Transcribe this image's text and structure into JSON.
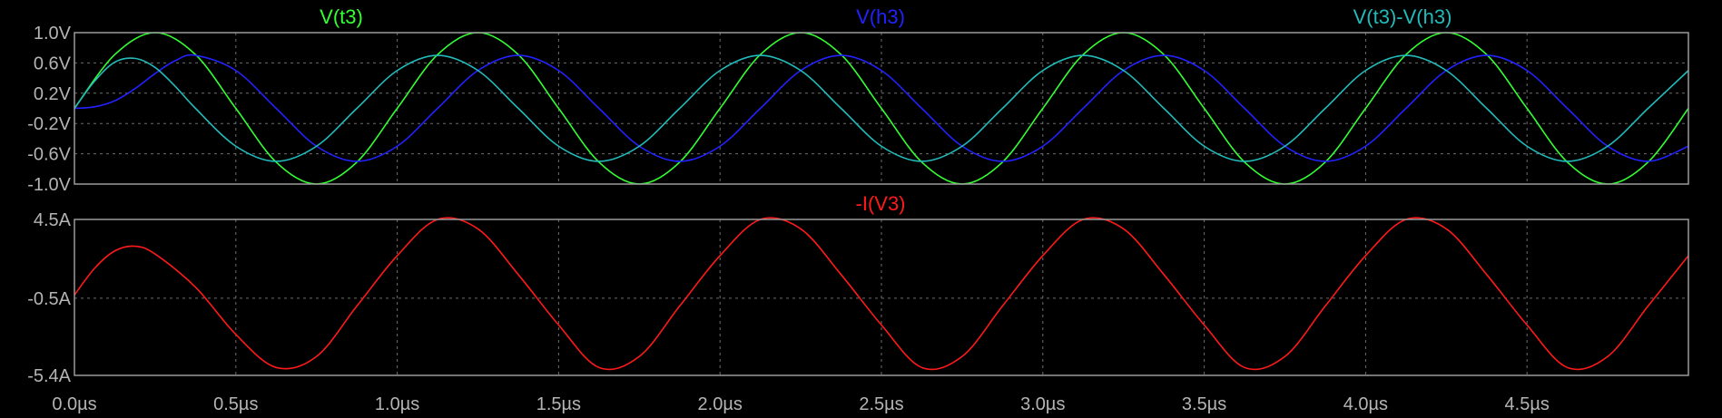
{
  "chart_data": [
    {
      "type": "line",
      "x_unit": "µs",
      "xlim": [
        0,
        5
      ],
      "ylim": [
        -1.0,
        1.0
      ],
      "x_ticks": [
        0,
        0.5,
        1,
        1.5,
        2,
        2.5,
        3,
        3.5,
        4,
        4.5
      ],
      "x_tick_labels": [
        "0.0µs",
        "0.5µs",
        "1.0µs",
        "1.5µs",
        "2.0µs",
        "2.5µs",
        "3.0µs",
        "3.5µs",
        "4.0µs",
        "4.5µs"
      ],
      "y_ticks": [
        1.0,
        0.6,
        0.2,
        -0.2,
        -0.6,
        -1.0
      ],
      "y_tick_labels": [
        "1.0V",
        "0.6V",
        "0.2V",
        "-0.2V",
        "-0.6V",
        "-1.0V"
      ],
      "grid": true,
      "series": [
        {
          "name": "V(t3)",
          "color": "#33ff33",
          "x": [
            0,
            0.125,
            0.25,
            0.375,
            0.5,
            0.625,
            0.75,
            0.875,
            1.0,
            1.125,
            1.25,
            1.375,
            1.5,
            1.625,
            1.75,
            1.875,
            2.0,
            2.125,
            2.25,
            2.375,
            2.5,
            2.625,
            2.75,
            2.875,
            3.0,
            3.125,
            3.25,
            3.375,
            3.5,
            3.625,
            3.75,
            3.875,
            4.0,
            4.125,
            4.25,
            4.375,
            4.5,
            4.625,
            4.75,
            4.875,
            5.0
          ],
          "values": [
            0,
            0.71,
            1.0,
            0.71,
            0,
            -0.71,
            -1.0,
            -0.71,
            0,
            0.71,
            1.0,
            0.71,
            0,
            -0.71,
            -1.0,
            -0.71,
            0,
            0.71,
            1.0,
            0.71,
            0,
            -0.71,
            -1.0,
            -0.71,
            0,
            0.71,
            1.0,
            0.71,
            0,
            -0.71,
            -1.0,
            -0.71,
            0,
            0.71,
            1.0,
            0.71,
            0,
            -0.71,
            -1.0,
            -0.71,
            0
          ]
        },
        {
          "name": "V(h3)",
          "color": "#2222ff",
          "x": [
            0,
            0.0625,
            0.125,
            0.1875,
            0.25,
            0.3125,
            0.375,
            0.5,
            0.625,
            0.75,
            0.875,
            1.0,
            1.125,
            1.25,
            1.375,
            1.5,
            1.625,
            1.75,
            1.875,
            2.0,
            2.125,
            2.25,
            2.375,
            2.5,
            2.625,
            2.75,
            2.875,
            3.0,
            3.125,
            3.25,
            3.375,
            3.5,
            3.625,
            3.75,
            3.875,
            4.0,
            4.125,
            4.25,
            4.375,
            4.5,
            4.625,
            4.75,
            4.875,
            5.0
          ],
          "values": [
            0,
            0.02,
            0.1,
            0.26,
            0.46,
            0.63,
            0.7,
            0.5,
            0,
            -0.5,
            -0.7,
            -0.5,
            0,
            0.5,
            0.7,
            0.5,
            0,
            -0.5,
            -0.7,
            -0.5,
            0,
            0.5,
            0.7,
            0.5,
            0,
            -0.5,
            -0.7,
            -0.5,
            0,
            0.5,
            0.7,
            0.5,
            0,
            -0.5,
            -0.7,
            -0.5,
            0,
            0.5,
            0.7,
            0.5,
            0,
            -0.5,
            -0.7,
            -0.5
          ]
        },
        {
          "name": "V(t3)-V(h3)",
          "color": "#22bbbb",
          "x": [
            0,
            0.0625,
            0.125,
            0.1875,
            0.25,
            0.3125,
            0.375,
            0.5,
            0.625,
            0.75,
            0.875,
            1.0,
            1.125,
            1.25,
            1.375,
            1.5,
            1.625,
            1.75,
            1.875,
            2.0,
            2.125,
            2.25,
            2.375,
            2.5,
            2.625,
            2.75,
            2.875,
            3.0,
            3.125,
            3.25,
            3.375,
            3.5,
            3.625,
            3.75,
            3.875,
            4.0,
            4.125,
            4.25,
            4.375,
            4.5,
            4.625,
            4.75,
            4.875,
            5.0
          ],
          "values": [
            0,
            0.36,
            0.61,
            0.66,
            0.54,
            0.29,
            0.0,
            -0.5,
            -0.7,
            -0.5,
            0,
            0.5,
            0.7,
            0.5,
            0,
            -0.5,
            -0.7,
            -0.5,
            0,
            0.5,
            0.7,
            0.5,
            0,
            -0.5,
            -0.7,
            -0.5,
            0,
            0.5,
            0.7,
            0.5,
            0,
            -0.5,
            -0.7,
            -0.5,
            0,
            0.5,
            0.7,
            0.5,
            0,
            -0.5,
            -0.7,
            -0.5,
            0,
            0.5
          ]
        }
      ]
    },
    {
      "type": "line",
      "x_unit": "µs",
      "xlim": [
        0,
        5
      ],
      "ylim": [
        -5.4,
        4.5
      ],
      "x_ticks": [
        0,
        0.5,
        1,
        1.5,
        2,
        2.5,
        3,
        3.5,
        4,
        4.5
      ],
      "y_ticks": [
        4.5,
        -0.5,
        -5.4
      ],
      "y_tick_labels": [
        "4.5A",
        "-0.5A",
        "-5.4A"
      ],
      "grid": true,
      "series": [
        {
          "name": "-I(V3)",
          "color": "#ff1a1a",
          "x": [
            0,
            0.0625,
            0.125,
            0.1875,
            0.25,
            0.375,
            0.5,
            0.625,
            0.75,
            0.875,
            1.0,
            1.125,
            1.25,
            1.375,
            1.5,
            1.625,
            1.75,
            1.875,
            2.0,
            2.125,
            2.25,
            2.375,
            2.5,
            2.625,
            2.75,
            2.875,
            3.0,
            3.125,
            3.25,
            3.375,
            3.5,
            3.625,
            3.75,
            3.875,
            4.0,
            4.125,
            4.25,
            4.375,
            4.5,
            4.625,
            4.75,
            4.875,
            5.0
          ],
          "values": [
            -0.3,
            1.4,
            2.5,
            2.8,
            2.3,
            0.2,
            -2.8,
            -4.9,
            -4.2,
            -1.0,
            2.2,
            4.5,
            3.9,
            1.0,
            -2.2,
            -4.9,
            -4.2,
            -1.0,
            2.2,
            4.5,
            3.9,
            1.0,
            -2.2,
            -4.9,
            -4.2,
            -1.0,
            2.2,
            4.5,
            3.9,
            1.0,
            -2.2,
            -4.9,
            -4.2,
            -1.0,
            2.2,
            4.5,
            3.9,
            1.0,
            -2.2,
            -4.9,
            -4.2,
            -1.0,
            2.2
          ]
        }
      ]
    }
  ]
}
